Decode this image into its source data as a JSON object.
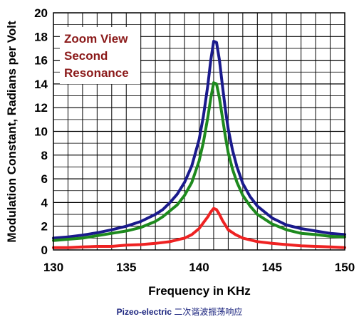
{
  "chart_data": {
    "type": "line",
    "xlabel": "Frequency in KHz",
    "ylabel": "Modulation Constant, Radians  per Volt",
    "xlim": [
      130,
      150
    ],
    "ylim": [
      0,
      20
    ],
    "x_ticks": [
      "130",
      "135",
      "140",
      "145",
      "150"
    ],
    "y_ticks": [
      "0",
      "2",
      "4",
      "6",
      "8",
      "10",
      "12",
      "14",
      "16",
      "18",
      "20"
    ],
    "grid": true,
    "annotation": [
      "Zoom View",
      "Second",
      "Resonance"
    ],
    "series": [
      {
        "color": "#1a1a8c",
        "x": [
          130,
          131,
          132,
          133,
          134,
          135,
          136,
          137,
          137.5,
          138,
          138.5,
          139,
          139.5,
          140,
          140.3,
          140.6,
          140.8,
          141,
          141.2,
          141.4,
          141.6,
          141.8,
          142,
          142.3,
          142.6,
          143,
          143.5,
          144,
          145,
          146,
          147,
          148,
          149,
          150
        ],
        "y": [
          1.0,
          1.1,
          1.25,
          1.45,
          1.7,
          2.0,
          2.4,
          3.0,
          3.4,
          4.0,
          4.7,
          5.7,
          7.1,
          9.3,
          11.3,
          13.9,
          16.0,
          17.6,
          17.5,
          16.0,
          13.9,
          11.9,
          10.2,
          8.4,
          7.0,
          5.6,
          4.5,
          3.7,
          2.7,
          2.1,
          1.8,
          1.6,
          1.4,
          1.3
        ]
      },
      {
        "color": "#1e8a1e",
        "x": [
          130,
          131,
          132,
          133,
          134,
          135,
          136,
          137,
          137.5,
          138,
          138.5,
          139,
          139.5,
          140,
          140.3,
          140.6,
          140.8,
          141,
          141.2,
          141.4,
          141.6,
          141.8,
          142,
          142.3,
          142.6,
          143,
          143.5,
          144,
          145,
          146,
          147,
          148,
          149,
          150
        ],
        "y": [
          0.8,
          0.9,
          1.0,
          1.2,
          1.4,
          1.6,
          1.9,
          2.4,
          2.8,
          3.3,
          3.8,
          4.6,
          5.7,
          7.5,
          9.1,
          11.2,
          12.8,
          14.1,
          14.0,
          12.8,
          11.2,
          9.6,
          8.2,
          6.8,
          5.7,
          4.6,
          3.7,
          3.0,
          2.2,
          1.7,
          1.4,
          1.3,
          1.15,
          1.1
        ]
      },
      {
        "color": "#ee2222",
        "x": [
          130,
          131,
          132,
          133,
          134,
          135,
          136,
          137,
          138,
          138.5,
          139,
          139.5,
          140,
          140.3,
          140.6,
          140.8,
          141,
          141.2,
          141.4,
          141.6,
          141.8,
          142,
          142.5,
          143,
          144,
          145,
          146,
          147,
          148,
          149,
          150
        ],
        "y": [
          0.2,
          0.2,
          0.25,
          0.3,
          0.3,
          0.4,
          0.45,
          0.55,
          0.7,
          0.85,
          1.0,
          1.3,
          1.8,
          2.3,
          2.8,
          3.2,
          3.5,
          3.4,
          3.0,
          2.5,
          2.1,
          1.7,
          1.3,
          1.0,
          0.7,
          0.55,
          0.45,
          0.35,
          0.3,
          0.25,
          0.2
        ]
      }
    ]
  },
  "caption": {
    "bold": "Pizeo-electric",
    "rest": " 二次谐波振荡响应"
  }
}
